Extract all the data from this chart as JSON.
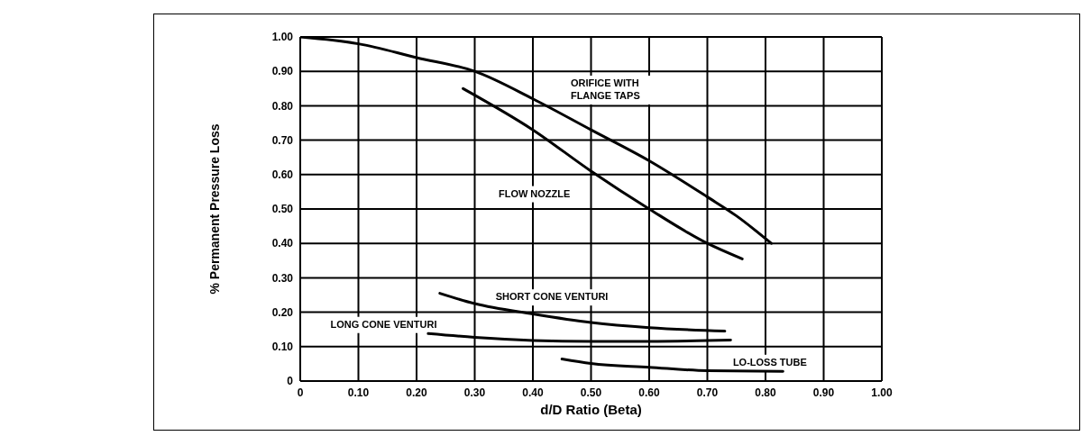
{
  "chart_data": {
    "type": "line",
    "xlabel": "d/D Ratio (Beta)",
    "ylabel": "% Permanent Pressure Loss",
    "xlim": [
      0,
      1
    ],
    "ylim": [
      0,
      1
    ],
    "xticks": [
      0,
      {
        "value": 0.1,
        "label": "0.10"
      },
      {
        "value": 0.2,
        "label": "0.20"
      },
      {
        "value": 0.3,
        "label": "0.30"
      },
      {
        "value": 0.4,
        "label": "0.40"
      },
      {
        "value": 0.5,
        "label": "0.50"
      },
      {
        "value": 0.6,
        "label": "0.60"
      },
      {
        "value": 0.7,
        "label": "0.70"
      },
      {
        "value": 0.8,
        "label": "0.80"
      },
      {
        "value": 0.9,
        "label": "0.90"
      },
      {
        "value": 1,
        "label": "1.00"
      }
    ],
    "yticks": [
      0,
      {
        "value": 0.1,
        "label": "0.10"
      },
      {
        "value": 0.2,
        "label": "0.20"
      },
      {
        "value": 0.3,
        "label": "0.30"
      },
      {
        "value": 0.4,
        "label": "0.40"
      },
      {
        "value": 0.5,
        "label": "0.50"
      },
      {
        "value": 0.6,
        "label": "0.60"
      },
      {
        "value": 0.7,
        "label": "0.70"
      },
      {
        "value": 0.8,
        "label": "0.80"
      },
      {
        "value": 0.9,
        "label": "0.90"
      },
      {
        "value": 1,
        "label": "1.00"
      }
    ],
    "grid": true,
    "marker": "none",
    "line_style": "solid",
    "series": [
      {
        "name": "ORIFICE WITH FLANGE TAPS",
        "color": "#000000",
        "x": [
          0,
          0.1,
          0.2,
          0.3,
          0.4,
          0.5,
          0.6,
          0.7,
          0.75,
          0.81
        ],
        "values": [
          1.0,
          0.98,
          0.94,
          0.9,
          0.82,
          0.73,
          0.64,
          0.535,
          0.48,
          0.4
        ]
      },
      {
        "name": "FLOW NOZZLE",
        "color": "#000000",
        "x": [
          0.28,
          0.4,
          0.5,
          0.6,
          0.7,
          0.76
        ],
        "values": [
          0.85,
          0.73,
          0.61,
          0.5,
          0.4,
          0.355
        ]
      },
      {
        "name": "SHORT CONE VENTURI",
        "color": "#000000",
        "x": [
          0.24,
          0.3,
          0.4,
          0.5,
          0.6,
          0.73
        ],
        "values": [
          0.255,
          0.225,
          0.195,
          0.17,
          0.155,
          0.145
        ]
      },
      {
        "name": "LONG CONE VENTURI",
        "color": "#000000",
        "x": [
          0.22,
          0.3,
          0.4,
          0.5,
          0.6,
          0.74
        ],
        "values": [
          0.138,
          0.127,
          0.118,
          0.115,
          0.115,
          0.119
        ]
      },
      {
        "name": "LO-LOSS TUBE",
        "color": "#000000",
        "x": [
          0.45,
          0.5,
          0.6,
          0.7,
          0.83
        ],
        "values": [
          0.064,
          0.051,
          0.04,
          0.03,
          0.028
        ]
      }
    ]
  }
}
